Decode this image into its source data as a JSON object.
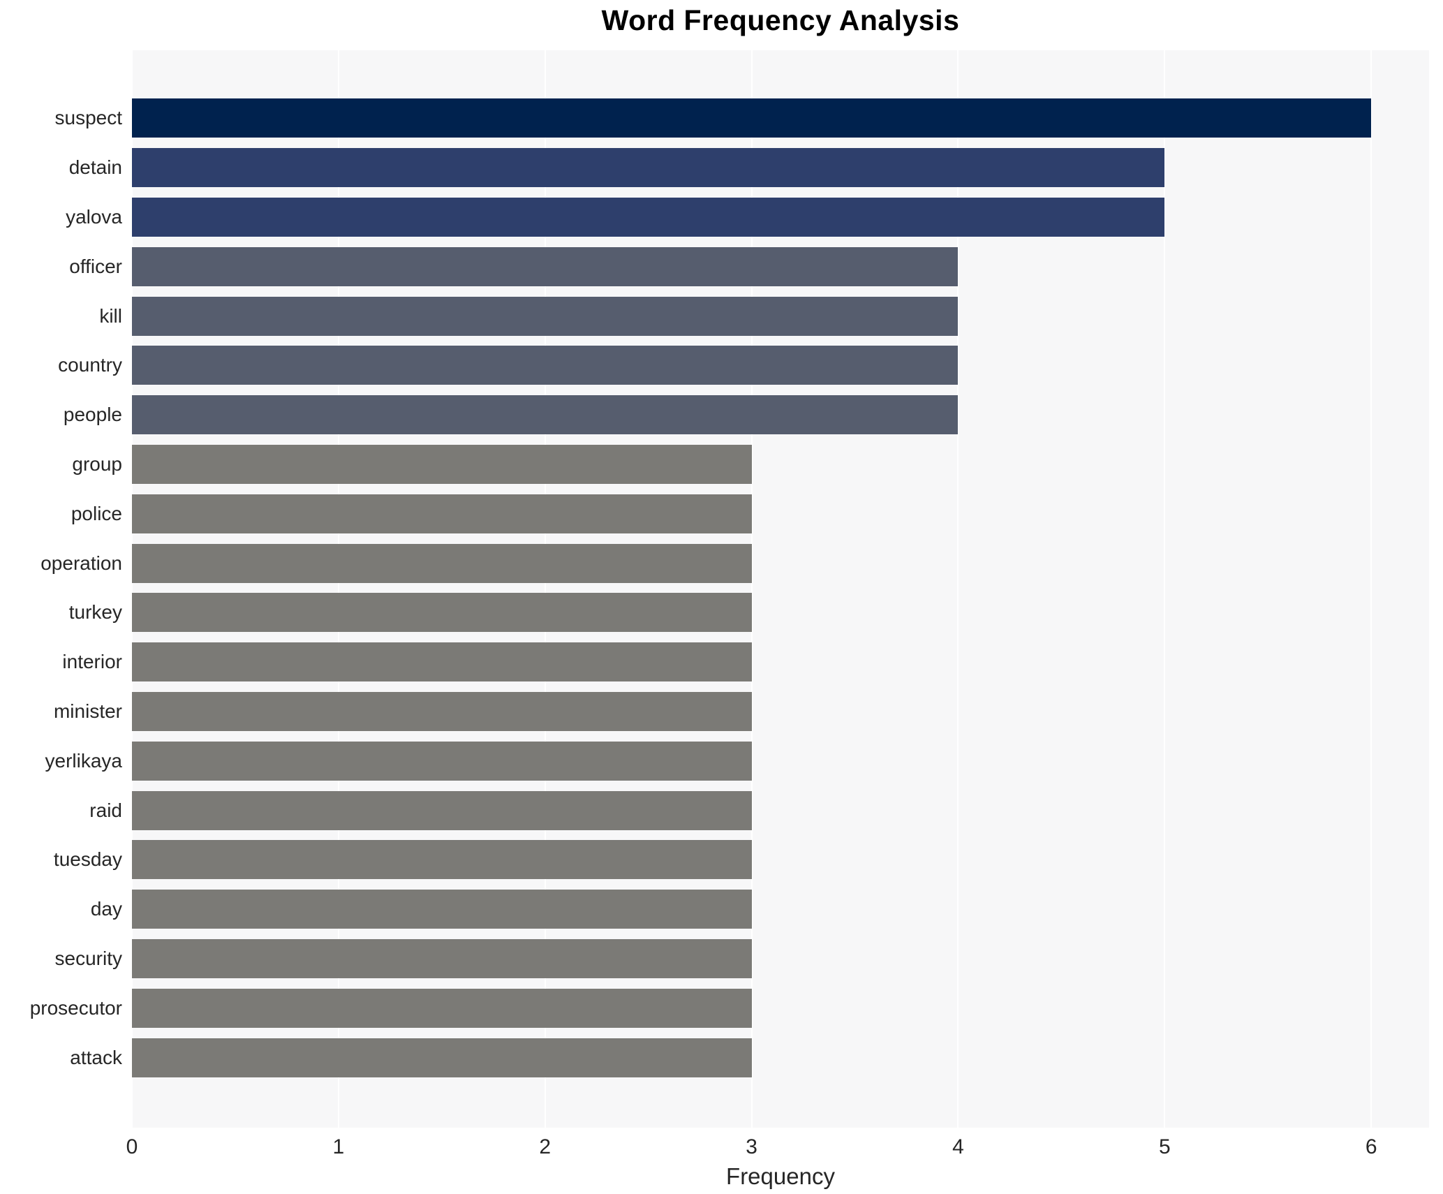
{
  "chart_data": {
    "type": "bar",
    "orientation": "horizontal",
    "title": "Word Frequency Analysis",
    "xlabel": "Frequency",
    "ylabel": "",
    "categories": [
      "suspect",
      "detain",
      "yalova",
      "officer",
      "kill",
      "country",
      "people",
      "group",
      "police",
      "operation",
      "turkey",
      "interior",
      "minister",
      "yerlikaya",
      "raid",
      "tuesday",
      "day",
      "security",
      "prosecutor",
      "attack"
    ],
    "values": [
      6,
      5,
      5,
      4,
      4,
      4,
      4,
      3,
      3,
      3,
      3,
      3,
      3,
      3,
      3,
      3,
      3,
      3,
      3,
      3
    ],
    "xticks": [
      "0",
      "1",
      "2",
      "3",
      "4",
      "5",
      "6"
    ],
    "xlim": [
      0,
      6.28
    ],
    "grid": true,
    "legend": false,
    "colors": {
      "value_6": "#00224e",
      "value_5": "#2e3f6c",
      "value_4": "#565d6e",
      "value_3": "#7b7a76",
      "plot_background": "#f7f7f8",
      "gridline": "#ffffff",
      "text": "#262626",
      "title": "#000000"
    }
  }
}
